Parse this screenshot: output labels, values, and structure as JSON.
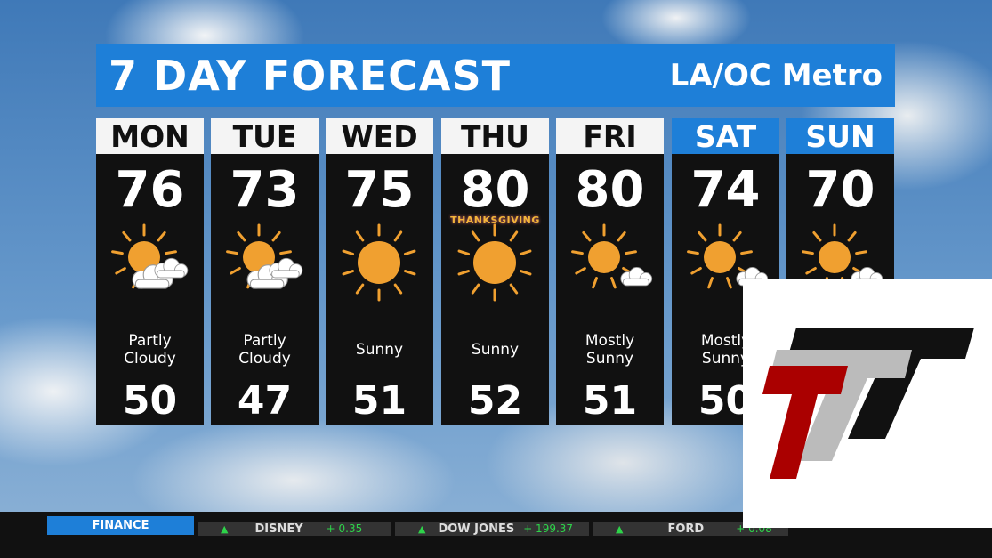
{
  "header": {
    "title": "7 DAY FORECAST",
    "region": "LA/OC Metro"
  },
  "days": [
    {
      "day": "MON",
      "high": "76",
      "low": "50",
      "condition": "Partly Cloudy",
      "icon": "sun-cloud-icon",
      "weekend": false
    },
    {
      "day": "TUE",
      "high": "73",
      "low": "47",
      "condition": "Partly Cloudy",
      "icon": "sun-cloud-icon",
      "weekend": false
    },
    {
      "day": "WED",
      "high": "75",
      "low": "51",
      "condition": "Sunny",
      "icon": "sun-icon",
      "weekend": false
    },
    {
      "day": "THU",
      "high": "80",
      "low": "52",
      "condition": "Sunny",
      "icon": "sun-icon",
      "weekend": false,
      "tag": "THANKSGIVING"
    },
    {
      "day": "FRI",
      "high": "80",
      "low": "51",
      "condition": "Mostly Sunny",
      "icon": "sun-small-cloud-icon",
      "weekend": false
    },
    {
      "day": "SAT",
      "high": "74",
      "low": "50",
      "condition": "Mostly Sunny",
      "icon": "sun-small-cloud-icon",
      "weekend": true
    },
    {
      "day": "SUN",
      "high": "70",
      "low": "",
      "condition": "",
      "icon": "sun-small-cloud-icon",
      "weekend": true
    }
  ],
  "ticker": {
    "section": "FINANCE",
    "stocks": [
      {
        "name": "DISNEY",
        "change": "+ 0.35"
      },
      {
        "name": "DOW JONES",
        "change": "+ 199.37"
      },
      {
        "name": "FORD",
        "change": "+ 0.08"
      }
    ]
  },
  "colors": {
    "accent": "#1e7fd8",
    "up": "#2ed34a",
    "sun": "#f0a030"
  }
}
